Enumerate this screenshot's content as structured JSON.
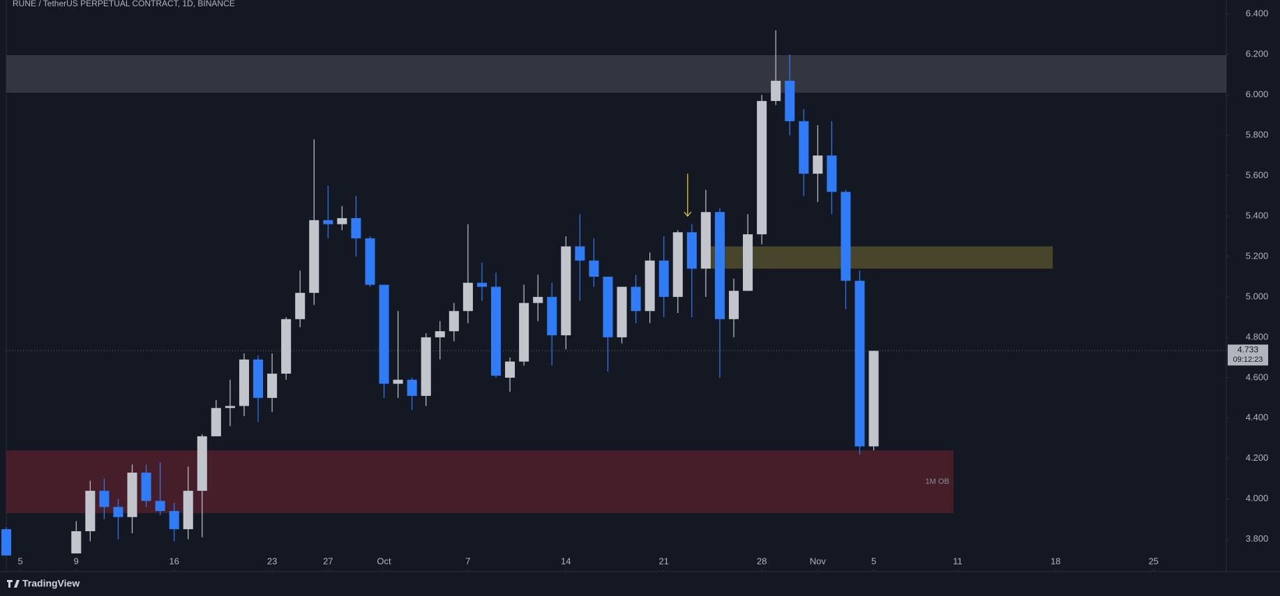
{
  "chart_data": {
    "type": "candlestick",
    "title": "RUNE / TetherUS PERPETUAL CONTRACT, 1D, BINANCE",
    "brand": "TradingView",
    "up_color": "#c3c5cc",
    "down_color": "#2f7cf6",
    "x": [
      4,
      9,
      10,
      11,
      12,
      13,
      14,
      15,
      16,
      17,
      18,
      19,
      20,
      21,
      22,
      23,
      24,
      25,
      26,
      27,
      28,
      29,
      30,
      31,
      32,
      33,
      34,
      35,
      36,
      37,
      38,
      39,
      40,
      41,
      42,
      43,
      44,
      45,
      46,
      47,
      48,
      49,
      50,
      51,
      52,
      53,
      54,
      55,
      56,
      57,
      58,
      59,
      60,
      61,
      62,
      63,
      64,
      65,
      66
    ],
    "open": [
      3.85,
      3.73,
      3.84,
      4.04,
      3.96,
      3.91,
      4.13,
      3.99,
      3.94,
      3.85,
      4.04,
      4.31,
      4.45,
      4.46,
      4.69,
      4.5,
      4.62,
      4.89,
      5.02,
      5.38,
      5.36,
      5.39,
      5.29,
      5.06,
      4.57,
      4.59,
      4.51,
      4.8,
      4.83,
      4.93,
      5.07,
      5.05,
      4.6,
      4.68,
      4.97,
      5.0,
      4.81,
      5.25,
      5.18,
      5.1,
      4.8,
      5.05,
      4.93,
      5.18,
      5.0,
      5.32,
      5.14,
      5.42,
      4.89,
      5.03,
      5.31,
      5.97,
      6.07,
      5.87,
      5.61,
      5.7,
      5.52,
      5.08,
      4.26
    ],
    "high": [
      3.86,
      3.89,
      4.09,
      4.1,
      4.0,
      4.17,
      4.17,
      4.18,
      3.98,
      4.16,
      4.32,
      4.49,
      4.59,
      4.72,
      4.71,
      4.72,
      4.9,
      5.13,
      5.78,
      5.55,
      5.45,
      5.5,
      5.3,
      5.06,
      4.93,
      4.6,
      4.82,
      4.88,
      4.97,
      5.36,
      5.17,
      5.12,
      4.7,
      5.06,
      5.11,
      5.07,
      5.3,
      5.41,
      5.29,
      5.1,
      5.05,
      5.11,
      5.22,
      5.3,
      5.33,
      5.36,
      5.53,
      5.44,
      5.09,
      5.41,
      6.0,
      6.32,
      6.2,
      5.93,
      5.85,
      5.87,
      5.53,
      5.13,
      4.733
    ],
    "low": [
      3.72,
      3.73,
      3.79,
      3.9,
      3.8,
      3.83,
      3.96,
      3.92,
      3.79,
      3.8,
      3.81,
      4.31,
      4.36,
      4.41,
      4.38,
      4.43,
      4.59,
      4.85,
      4.96,
      5.29,
      5.33,
      5.2,
      5.05,
      4.5,
      4.5,
      4.44,
      4.46,
      4.69,
      4.78,
      4.87,
      4.98,
      4.6,
      4.53,
      4.66,
      4.88,
      4.66,
      4.74,
      4.98,
      5.05,
      4.63,
      4.77,
      4.87,
      4.87,
      4.9,
      4.92,
      4.9,
      5.0,
      4.6,
      4.8,
      5.03,
      5.26,
      5.95,
      5.8,
      5.5,
      5.47,
      5.41,
      4.94,
      4.22,
      4.24
    ],
    "close": [
      3.72,
      3.84,
      4.04,
      3.96,
      3.91,
      4.13,
      3.99,
      3.94,
      3.85,
      4.04,
      4.31,
      4.45,
      4.46,
      4.69,
      4.5,
      4.62,
      4.89,
      5.02,
      5.38,
      5.36,
      5.39,
      5.29,
      5.06,
      4.57,
      4.59,
      4.51,
      4.8,
      4.83,
      4.93,
      5.07,
      5.05,
      4.61,
      4.68,
      4.97,
      5.0,
      4.81,
      5.25,
      5.18,
      5.1,
      4.8,
      5.05,
      4.93,
      5.18,
      5.0,
      5.32,
      5.14,
      5.42,
      4.89,
      5.03,
      5.31,
      5.97,
      6.07,
      5.87,
      5.61,
      5.7,
      5.52,
      5.08,
      4.26,
      4.733
    ],
    "xlim": [
      4,
      91.2
    ],
    "xticks": [
      5,
      9,
      16,
      23,
      27,
      {
        "value": 31,
        "label": "Oct"
      },
      {
        "value": 37,
        "label": "7"
      },
      {
        "value": 44,
        "label": "14"
      },
      {
        "value": 51,
        "label": "21"
      },
      {
        "value": 58,
        "label": "28"
      },
      {
        "value": 62,
        "label": "Nov"
      },
      {
        "value": 66,
        "label": "5"
      },
      {
        "value": 72,
        "label": "11"
      },
      {
        "value": 79,
        "label": "18"
      },
      {
        "value": 86,
        "label": "25"
      }
    ],
    "ylim": [
      3.64,
      6.47
    ],
    "yticks": [
      {
        "value": 3.8,
        "label": "3.800"
      },
      {
        "value": 4.0,
        "label": "4.000"
      },
      {
        "value": 4.2,
        "label": "4.200"
      },
      {
        "value": 4.4,
        "label": "4.400"
      },
      {
        "value": 4.6,
        "label": "4.600"
      },
      {
        "value": 4.8,
        "label": "4.800"
      },
      {
        "value": 5.0,
        "label": "5.000"
      },
      {
        "value": 5.2,
        "label": "5.200"
      },
      {
        "value": 5.4,
        "label": "5.400"
      },
      {
        "value": 5.6,
        "label": "5.600"
      },
      {
        "value": 5.8,
        "label": "5.800"
      },
      {
        "value": 6.0,
        "label": "6.000"
      },
      {
        "value": 6.2,
        "label": "6.200"
      },
      {
        "value": 6.4,
        "label": "6.400"
      }
    ],
    "zones": [
      {
        "x": [
          4,
          91.2
        ],
        "y": [
          6.011,
          6.197
        ],
        "color": "#363a45"
      },
      {
        "x": [
          53.7,
          78.8
        ],
        "y": [
          5.14,
          5.25
        ],
        "color": "#4e4a2b"
      },
      {
        "x": [
          4,
          71.7
        ],
        "y": [
          3.93,
          4.24
        ],
        "color": "#4a1f2b",
        "label": "1M OB"
      }
    ],
    "arrow": {
      "x": 52.7,
      "y": [
        5.61,
        5.4
      ],
      "color": "#e5c33b"
    },
    "last_price": 4.733,
    "countdown": "09:12:23"
  }
}
